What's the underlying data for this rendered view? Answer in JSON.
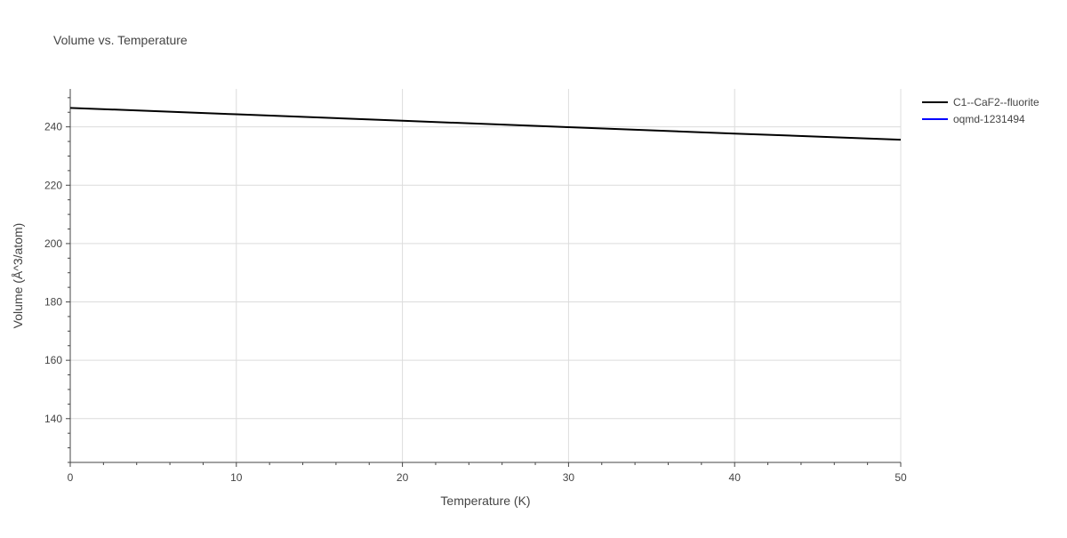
{
  "chart_data": {
    "type": "line",
    "title": "Volume vs. Temperature",
    "xlabel": "Temperature (K)",
    "ylabel": "Volume (Å^3/atom)",
    "xlim": [
      0,
      50
    ],
    "ylim": [
      125,
      253
    ],
    "x_ticks": [
      0,
      10,
      20,
      30,
      40,
      50
    ],
    "y_ticks": [
      140,
      160,
      180,
      200,
      220,
      240
    ],
    "x_minor_step": 2,
    "y_minor_step": 5,
    "grid": true,
    "legend_position": "top-right",
    "series": [
      {
        "name": "C1--CaF2--fluorite",
        "color": "#000000",
        "x": [
          0,
          10,
          20,
          30,
          40,
          50
        ],
        "values": [
          246.5,
          244.3,
          242.1,
          239.9,
          237.7,
          235.6
        ]
      },
      {
        "name": "oqmd-1231494",
        "color": "#0000ff",
        "x": [],
        "values": []
      }
    ]
  }
}
